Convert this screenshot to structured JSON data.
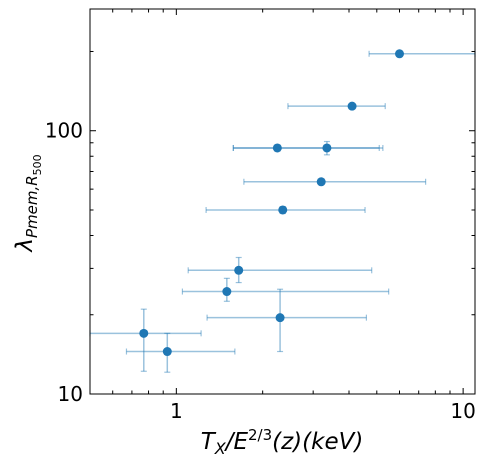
{
  "chart_data": {
    "type": "scatter",
    "xlabel": "T_X/E^{2/3}(z)(keV)",
    "ylabel": "λ_{Pmem,R_500}",
    "xscale": "log",
    "yscale": "log",
    "xlim": [
      0.5,
      11
    ],
    "ylim": [
      10,
      290
    ],
    "x_ticks": [
      1,
      10
    ],
    "x_tick_labels": [
      "1",
      "10"
    ],
    "y_ticks": [
      10,
      100
    ],
    "y_tick_labels": [
      "10",
      "100"
    ],
    "grid": false,
    "marker_color": "#1f77b4",
    "errorbar_color": "#1f77b4",
    "points": [
      {
        "x": 6.0,
        "y": 196,
        "xerr": [
          4.7,
          11.0
        ],
        "yerr": [
          196,
          196
        ]
      },
      {
        "x": 4.1,
        "y": 124,
        "xerr": [
          2.45,
          5.35
        ],
        "yerr": [
          124,
          124
        ]
      },
      {
        "x": 2.25,
        "y": 86,
        "xerr": [
          1.58,
          5.25
        ],
        "yerr": [
          84,
          88
        ]
      },
      {
        "x": 3.35,
        "y": 86,
        "xerr": [
          1.58,
          5.1
        ],
        "yerr": [
          81,
          91
        ]
      },
      {
        "x": 3.2,
        "y": 64,
        "xerr": [
          1.72,
          7.4
        ],
        "yerr": [
          63,
          65
        ]
      },
      {
        "x": 2.35,
        "y": 50,
        "xerr": [
          1.27,
          4.55
        ],
        "yerr": [
          48.5,
          51.5
        ]
      },
      {
        "x": 1.65,
        "y": 29.5,
        "xerr": [
          1.1,
          4.8
        ],
        "yerr": [
          26.5,
          33
        ]
      },
      {
        "x": 1.5,
        "y": 24.5,
        "xerr": [
          1.05,
          5.5
        ],
        "yerr": [
          22.5,
          27.5
        ]
      },
      {
        "x": 2.3,
        "y": 19.5,
        "xerr": [
          1.28,
          4.6
        ],
        "yerr": [
          14.5,
          25
        ]
      },
      {
        "x": 0.77,
        "y": 17,
        "xerr": [
          0.5,
          1.22
        ],
        "yerr": [
          12.2,
          21
        ]
      },
      {
        "x": 0.93,
        "y": 14.5,
        "xerr": [
          0.67,
          1.6
        ],
        "yerr": [
          12.1,
          17
        ]
      }
    ]
  }
}
